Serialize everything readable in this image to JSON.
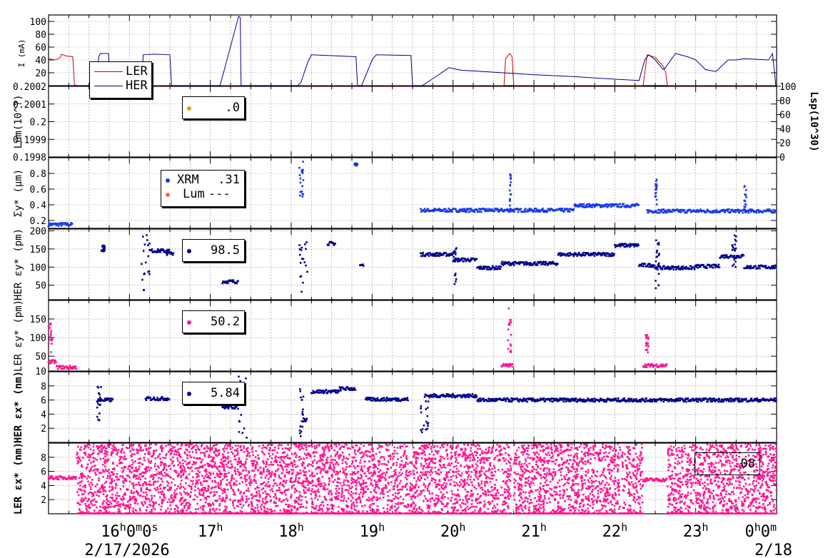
{
  "chart_data": [
    {
      "type": "line",
      "ylabel": "I (mA)",
      "ylim": [
        0,
        110
      ],
      "yticks": [
        "20",
        "40",
        "60",
        "80",
        "100"
      ],
      "series": [
        {
          "name": "LER",
          "color": "#cc0000",
          "points": [
            [
              15.0,
              42
            ],
            [
              15.08,
              40
            ],
            [
              15.14,
              43
            ],
            [
              15.16,
              49
            ],
            [
              15.22,
              46
            ],
            [
              15.3,
              45
            ],
            [
              15.32,
              2
            ],
            [
              15.34,
              0
            ],
            [
              15.7,
              0
            ],
            [
              16.0,
              0
            ],
            [
              17.0,
              0
            ],
            [
              18.0,
              0
            ],
            [
              19.0,
              0
            ],
            [
              20.0,
              0
            ],
            [
              20.63,
              0
            ],
            [
              20.65,
              42
            ],
            [
              20.7,
              50
            ],
            [
              20.73,
              45
            ],
            [
              20.75,
              0
            ],
            [
              21.0,
              0
            ],
            [
              22.0,
              0
            ],
            [
              22.35,
              0
            ],
            [
              22.4,
              48
            ],
            [
              22.5,
              44
            ],
            [
              22.6,
              30
            ],
            [
              22.63,
              20
            ],
            [
              22.65,
              0
            ],
            [
              23.0,
              0
            ],
            [
              24.0,
              0
            ]
          ]
        },
        {
          "name": "HER",
          "color": "#00008b",
          "points": [
            [
              15.0,
              0
            ],
            [
              15.6,
              0
            ],
            [
              15.62,
              45
            ],
            [
              15.64,
              50
            ],
            [
              15.74,
              50
            ],
            [
              15.76,
              0
            ],
            [
              16.15,
              0
            ],
            [
              16.17,
              48
            ],
            [
              16.3,
              49
            ],
            [
              16.5,
              48
            ],
            [
              16.52,
              0
            ],
            [
              17.12,
              0
            ],
            [
              17.35,
              108
            ],
            [
              17.37,
              106
            ],
            [
              17.38,
              0
            ],
            [
              18.08,
              0
            ],
            [
              18.12,
              5
            ],
            [
              18.2,
              35
            ],
            [
              18.25,
              48
            ],
            [
              18.8,
              45
            ],
            [
              18.82,
              0
            ],
            [
              18.87,
              0
            ],
            [
              19.0,
              40
            ],
            [
              19.05,
              48
            ],
            [
              19.48,
              47
            ],
            [
              19.5,
              0
            ],
            [
              19.62,
              0
            ],
            [
              19.8,
              15
            ],
            [
              19.95,
              28
            ],
            [
              20.1,
              24
            ],
            [
              20.5,
              21
            ],
            [
              21.0,
              17
            ],
            [
              21.5,
              14
            ],
            [
              22.0,
              10
            ],
            [
              22.3,
              8
            ],
            [
              22.37,
              40
            ],
            [
              22.42,
              48
            ],
            [
              22.5,
              40
            ],
            [
              22.6,
              25
            ],
            [
              22.62,
              27
            ],
            [
              22.75,
              50
            ],
            [
              22.9,
              45
            ],
            [
              23.0,
              40
            ],
            [
              23.12,
              25
            ],
            [
              23.25,
              22
            ],
            [
              23.4,
              40
            ],
            [
              23.5,
              40
            ],
            [
              23.6,
              42
            ],
            [
              23.75,
              41
            ],
            [
              23.9,
              40
            ],
            [
              23.95,
              50
            ],
            [
              23.99,
              0
            ],
            [
              24.0,
              0
            ]
          ]
        }
      ]
    },
    {
      "type": "scatter",
      "ylabel": "Lum(10^?)",
      "ylim": [
        0.1998,
        0.2002
      ],
      "yticks": [
        "0.1998",
        "0.1999",
        "0.2",
        "0.2001",
        "0.2002"
      ],
      "y2label": "Lsp(10^30)",
      "y2ticks": [
        "0",
        "20",
        "40",
        "60",
        "80",
        "100"
      ],
      "legend": [
        {
          "name": "",
          "value": ".0",
          "color": "#e0a000"
        }
      ]
    },
    {
      "type": "scatter",
      "ylabel": "Σy* (μm)",
      "ylim": [
        0.1,
        1.0
      ],
      "yticks": [
        "0.2",
        "0.4",
        "0.6",
        "0.8"
      ],
      "legend": [
        {
          "name": "XRM",
          "value": ".31",
          "color": "#1a3be8"
        },
        {
          "name": "Lum",
          "value": "---",
          "color": "#ff6633"
        }
      ],
      "segments": [
        [
          15.0,
          15.3,
          0.15
        ],
        [
          19.6,
          21.5,
          0.33
        ],
        [
          21.5,
          22.3,
          0.39
        ],
        [
          22.4,
          23.0,
          0.32
        ],
        [
          23.0,
          24.0,
          0.32
        ]
      ],
      "clusters": [
        [
          18.1,
          18.15,
          0.5,
          0.95
        ],
        [
          18.78,
          18.82,
          0.9,
          0.93
        ],
        [
          20.7,
          20.72,
          0.35,
          0.8
        ],
        [
          22.5,
          22.52,
          0.4,
          0.75
        ],
        [
          23.6,
          23.63,
          0.3,
          0.65
        ]
      ]
    },
    {
      "type": "scatter",
      "ylabel": "HER εy* (pm)",
      "ylim": [
        10,
        205
      ],
      "yticks": [
        "50",
        "100",
        "150",
        "200"
      ],
      "legend": [
        {
          "name": "",
          "value": "98.5",
          "color": "#00008b"
        }
      ],
      "segments": [
        [
          16.25,
          16.5,
          145
        ],
        [
          16.45,
          16.55,
          138
        ],
        [
          17.15,
          17.35,
          60
        ],
        [
          18.45,
          18.55,
          165
        ],
        [
          18.85,
          18.9,
          105
        ],
        [
          19.6,
          20.0,
          135
        ],
        [
          20.0,
          20.3,
          120
        ],
        [
          20.3,
          20.6,
          98
        ],
        [
          20.6,
          21.3,
          110
        ],
        [
          21.3,
          22.0,
          135
        ],
        [
          22.0,
          22.3,
          160
        ],
        [
          22.3,
          22.5,
          105
        ],
        [
          22.5,
          23.0,
          98
        ],
        [
          23.0,
          23.3,
          102
        ],
        [
          23.3,
          23.6,
          130
        ],
        [
          23.6,
          24.0,
          100
        ]
      ],
      "clusters": [
        [
          18.1,
          18.2,
          30,
          200
        ],
        [
          16.15,
          16.25,
          30,
          190
        ],
        [
          15.65,
          15.7,
          140,
          160
        ],
        [
          20.0,
          20.05,
          40,
          160
        ],
        [
          22.5,
          22.55,
          30,
          180
        ],
        [
          23.45,
          23.5,
          100,
          200
        ]
      ]
    },
    {
      "type": "scatter",
      "ylabel": "LER εy* (pm)",
      "ylim": [
        10,
        200
      ],
      "yticks": [
        "10",
        "50",
        "100",
        "150"
      ],
      "legend": [
        {
          "name": "",
          "value": "50.2",
          "color": "#ff1493"
        }
      ],
      "segments": [
        [
          15.0,
          15.1,
          35
        ],
        [
          15.1,
          15.35,
          20
        ],
        [
          20.6,
          20.75,
          25
        ],
        [
          22.35,
          22.65,
          25
        ]
      ],
      "clusters": [
        [
          15.0,
          15.05,
          60,
          140
        ],
        [
          20.68,
          20.72,
          40,
          180
        ],
        [
          22.38,
          22.42,
          60,
          110
        ]
      ]
    },
    {
      "type": "scatter",
      "ylabel": "HER εx* (nm)",
      "ylim": [
        0,
        10
      ],
      "yticks": [
        "2",
        "4",
        "6",
        "8"
      ],
      "legend": [
        {
          "name": "",
          "value": "5.84",
          "color": "#00008b"
        }
      ],
      "segments": [
        [
          15.6,
          15.8,
          6.0
        ],
        [
          16.2,
          16.5,
          6.2
        ],
        [
          17.15,
          17.35,
          5.0
        ],
        [
          18.15,
          18.2,
          3.2
        ],
        [
          18.25,
          18.6,
          7.2
        ],
        [
          18.6,
          18.8,
          7.6
        ],
        [
          18.92,
          19.45,
          6.1
        ],
        [
          19.65,
          20.3,
          6.6
        ],
        [
          20.3,
          24.0,
          6.0
        ]
      ],
      "clusters": [
        [
          17.35,
          17.45,
          0.5,
          9.5
        ],
        [
          18.1,
          18.15,
          0.5,
          9.0
        ],
        [
          15.6,
          15.65,
          3.0,
          8.0
        ],
        [
          19.6,
          19.7,
          1.0,
          6.0
        ]
      ]
    },
    {
      "type": "scatter",
      "ylabel": "LER εx* (nm)",
      "ylim": [
        0,
        10
      ],
      "yticks": [
        "2",
        "4",
        "6",
        "8"
      ],
      "legend": [
        {
          "name": "",
          "value": ".08",
          "color": "#ff1493"
        }
      ],
      "segments": [
        [
          15.0,
          15.35,
          5.1
        ],
        [
          22.35,
          22.65,
          4.8
        ]
      ],
      "noise": [
        [
          15.35,
          20.72
        ],
        [
          20.75,
          22.35
        ],
        [
          22.65,
          24.0
        ]
      ]
    }
  ],
  "xaxis": {
    "range": [
      15.0,
      24.0
    ],
    "ticks": [
      {
        "h": 16,
        "main": "16",
        "sup": "h",
        "extra": "0",
        "sup2": "m",
        "extra2": "0",
        "sup3": "s"
      },
      {
        "h": 17,
        "main": "17",
        "sup": "h"
      },
      {
        "h": 18,
        "main": "18",
        "sup": "h"
      },
      {
        "h": 19,
        "main": "19",
        "sup": "h"
      },
      {
        "h": 20,
        "main": "20",
        "sup": "h"
      },
      {
        "h": 21,
        "main": "21",
        "sup": "h"
      },
      {
        "h": 22,
        "main": "22",
        "sup": "h"
      },
      {
        "h": 23,
        "main": "23",
        "sup": "h"
      },
      {
        "h": 24,
        "main": "0",
        "sup": "h",
        "extra": "0",
        "sup2": "m"
      }
    ],
    "date_left": "2/17/2026",
    "date_right": "2/18"
  },
  "legend_current": [
    {
      "name": "LER",
      "color": "#cc0000"
    },
    {
      "name": "HER",
      "color": "#00008b"
    }
  ]
}
